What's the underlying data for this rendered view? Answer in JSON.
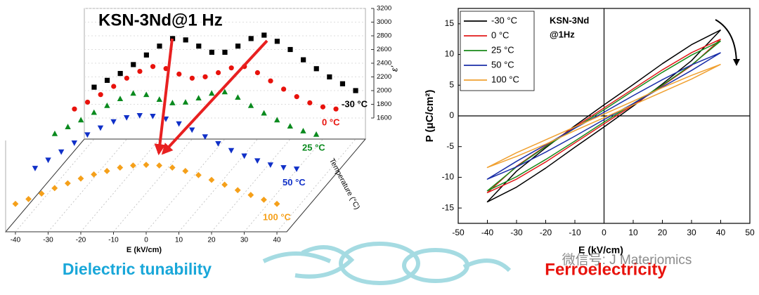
{
  "chart_data": [
    {
      "type": "waterfall",
      "title": "KSN-3Nd@1 Hz",
      "x_label": "E (kV/cm)",
      "y_label": "ε'",
      "z_label": "Temperature (°C)",
      "xlim": [
        -43,
        43
      ],
      "xticks": [
        -40,
        -30,
        -20,
        -10,
        0,
        10,
        20,
        30,
        40
      ],
      "ylim": [
        1600,
        3200
      ],
      "yticks": [
        1600,
        1800,
        2000,
        2200,
        2400,
        2600,
        2800,
        3000,
        3200
      ],
      "x": [
        -40,
        -36,
        -32,
        -28,
        -24,
        -20,
        -16,
        -12,
        -8,
        -4,
        0,
        4,
        8,
        12,
        16,
        20,
        24,
        28,
        32,
        36,
        40
      ],
      "series": [
        {
          "name": "-30 °C",
          "color": "#000000",
          "marker": "square",
          "values": [
            2050,
            2150,
            2250,
            2380,
            2520,
            2650,
            2760,
            2740,
            2650,
            2560,
            2560,
            2650,
            2760,
            2810,
            2720,
            2600,
            2450,
            2320,
            2200,
            2100,
            2000
          ]
        },
        {
          "name": "0 °C",
          "color": "#e8120c",
          "marker": "circle",
          "values": [
            2070,
            2170,
            2280,
            2400,
            2520,
            2620,
            2690,
            2660,
            2580,
            2520,
            2540,
            2600,
            2670,
            2690,
            2600,
            2480,
            2360,
            2250,
            2160,
            2100,
            2070
          ]
        },
        {
          "name": "25 °C",
          "color": "#0a8a1e",
          "marker": "triangle-up",
          "values": [
            2050,
            2150,
            2250,
            2360,
            2460,
            2560,
            2640,
            2620,
            2550,
            2500,
            2510,
            2570,
            2640,
            2660,
            2580,
            2460,
            2350,
            2250,
            2160,
            2090,
            2040
          ]
        },
        {
          "name": "50 °C",
          "color": "#1030c8",
          "marker": "triangle-down",
          "values": [
            1880,
            2000,
            2120,
            2250,
            2370,
            2470,
            2560,
            2620,
            2650,
            2640,
            2600,
            2530,
            2440,
            2340,
            2240,
            2140,
            2060,
            1990,
            1930,
            1890,
            1870
          ]
        },
        {
          "name": "100 °C",
          "color": "#f5a01a",
          "marker": "diamond",
          "values": [
            1700,
            1770,
            1850,
            1930,
            2000,
            2070,
            2130,
            2180,
            2230,
            2260,
            2270,
            2260,
            2230,
            2180,
            2120,
            2050,
            1980,
            1900,
            1830,
            1760,
            1700
          ]
        }
      ]
    },
    {
      "type": "line",
      "x_label": "E (kV/cm)",
      "y_label": "P (μC/cm²)",
      "annotation": [
        "KSN-3Nd",
        "@1Hz"
      ],
      "xlim": [
        -50,
        50
      ],
      "xticks": [
        -50,
        -40,
        -30,
        -20,
        -10,
        0,
        10,
        20,
        30,
        40,
        50
      ],
      "ylim": [
        -17.5,
        17.5
      ],
      "yticks": [
        -15,
        -10,
        -5,
        0,
        5,
        10,
        15
      ],
      "x": [
        40,
        30,
        20,
        10,
        0,
        -10,
        -20,
        -30,
        -40,
        -30,
        -20,
        -10,
        0,
        10,
        20,
        30,
        40
      ],
      "series": [
        {
          "name": "-30 °C",
          "color": "#000000",
          "values": [
            14.0,
            11.6,
            8.5,
            5.1,
            1.8,
            -1.6,
            -5.2,
            -9.0,
            -14.0,
            -11.6,
            -8.5,
            -5.1,
            -1.8,
            1.6,
            5.2,
            9.0,
            14.0
          ]
        },
        {
          "name": "0 °C",
          "color": "#e21a1a",
          "values": [
            12.5,
            10.3,
            7.5,
            4.4,
            1.3,
            -1.8,
            -4.9,
            -8.2,
            -12.5,
            -10.3,
            -7.5,
            -4.4,
            -1.3,
            1.8,
            4.9,
            8.2,
            12.5
          ]
        },
        {
          "name": "25 °C",
          "color": "#1a8a1a",
          "values": [
            12.2,
            9.9,
            7.1,
            4.1,
            1.0,
            -2.0,
            -5.0,
            -8.3,
            -12.2,
            -9.9,
            -7.1,
            -4.1,
            -1.0,
            2.0,
            5.0,
            8.3,
            12.2
          ]
        },
        {
          "name": "50 °C",
          "color": "#1a2ea8",
          "values": [
            10.3,
            8.3,
            5.9,
            3.3,
            0.6,
            -2.0,
            -4.7,
            -7.4,
            -10.3,
            -8.3,
            -5.9,
            -3.3,
            -0.6,
            2.0,
            4.7,
            7.4,
            10.3
          ]
        },
        {
          "name": "100 °C",
          "color": "#f0a030",
          "values": [
            8.4,
            6.6,
            4.6,
            2.4,
            0.3,
            -1.8,
            -3.9,
            -6.0,
            -8.4,
            -6.6,
            -4.6,
            -2.4,
            -0.3,
            1.8,
            3.9,
            6.0,
            8.4
          ]
        }
      ]
    }
  ],
  "captions": {
    "left": "Dielectric tunability",
    "right": "Ferroelectricity"
  },
  "watermark": "微信号: J Materiomics"
}
